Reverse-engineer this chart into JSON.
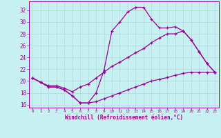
{
  "background_color": "#c8f0f0",
  "grid_color": "#b0d8d8",
  "line_color": "#990099",
  "xlabel": "Windchill (Refroidissement éolien,°C)",
  "xlim": [
    -0.5,
    23.5
  ],
  "ylim": [
    15.5,
    33.5
  ],
  "yticks": [
    16,
    18,
    20,
    22,
    24,
    26,
    28,
    30,
    32
  ],
  "xticks": [
    0,
    1,
    2,
    3,
    4,
    5,
    6,
    7,
    8,
    9,
    10,
    11,
    12,
    13,
    14,
    15,
    16,
    17,
    18,
    19,
    20,
    21,
    22,
    23
  ],
  "line1_x": [
    0,
    1,
    2,
    3,
    4,
    5,
    6,
    7,
    8,
    9,
    10,
    11,
    12,
    13,
    14,
    15,
    16,
    17,
    18,
    19,
    20,
    21,
    22,
    23
  ],
  "line1_y": [
    20.5,
    19.8,
    19.0,
    19.0,
    18.5,
    17.5,
    16.3,
    16.3,
    18.0,
    21.8,
    28.5,
    30.0,
    31.7,
    32.5,
    32.5,
    30.5,
    29.0,
    29.0,
    29.2,
    28.5,
    27.0,
    25.0,
    23.0,
    21.5
  ],
  "line2_x": [
    0,
    1,
    2,
    3,
    4,
    5,
    6,
    7,
    8,
    9,
    10,
    11,
    12,
    13,
    14,
    15,
    16,
    17,
    18,
    19,
    20,
    21,
    22,
    23
  ],
  "line2_y": [
    20.5,
    19.8,
    19.2,
    19.2,
    18.8,
    18.2,
    19.0,
    19.5,
    20.5,
    21.5,
    22.5,
    23.2,
    24.0,
    24.8,
    25.5,
    26.5,
    27.3,
    28.0,
    28.0,
    28.5,
    27.0,
    25.0,
    23.0,
    21.5
  ],
  "line3_x": [
    0,
    1,
    2,
    3,
    4,
    5,
    6,
    7,
    8,
    9,
    10,
    11,
    12,
    13,
    14,
    15,
    16,
    17,
    18,
    19,
    20,
    21,
    22,
    23
  ],
  "line3_y": [
    20.5,
    19.8,
    19.0,
    19.0,
    18.5,
    17.5,
    16.3,
    16.3,
    16.5,
    17.0,
    17.5,
    18.0,
    18.5,
    19.0,
    19.5,
    20.0,
    20.3,
    20.6,
    21.0,
    21.3,
    21.5,
    21.5,
    21.5,
    21.5
  ]
}
